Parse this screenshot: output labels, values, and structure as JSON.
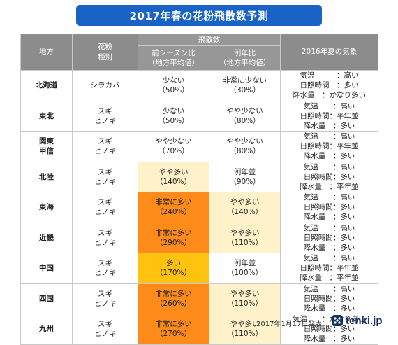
{
  "title": "2017年春の花粉飛散数予測",
  "headers": {
    "region": "地方",
    "pollen_type": "花粉\n種別",
    "dispersal": "飛散数",
    "prev_season": "前シーズン比\n（地方平均値）",
    "normal_year": "例年比\n（地方平均値）",
    "summer_weather": "2016年夏の気象"
  },
  "rows": [
    {
      "region": "北海道",
      "pollen": "シラカバ",
      "prev": [
        "少ない",
        "（50%）"
      ],
      "prev_level": "normal",
      "norm": [
        "非常に少ない",
        "（30%）"
      ],
      "norm_level": "normal",
      "weather": [
        "気温　　　：高い",
        "日照時間　：多い",
        "降水量　：かなり多い"
      ]
    },
    {
      "region": "東北",
      "pollen": "スギ\nヒノキ",
      "prev": [
        "少ない",
        "（50%）"
      ],
      "prev_level": "normal",
      "norm": [
        "やや少ない",
        "（80%）"
      ],
      "norm_level": "normal",
      "weather": [
        "気温　　：高い",
        "日照時間：平年並",
        "降水量　：多い"
      ]
    },
    {
      "region": "関東\n甲信",
      "pollen": "スギ\nヒノキ",
      "prev": [
        "やや少ない",
        "（70%）"
      ],
      "prev_level": "normal",
      "norm": [
        "やや少ない",
        "（80%）"
      ],
      "norm_level": "normal",
      "weather": [
        "気温　　：高い",
        "日照時間：平年並",
        "降水量　：多い"
      ]
    },
    {
      "region": "北陸",
      "pollen": "スギ\nヒノキ",
      "prev": [
        "やや多い",
        "（140%）"
      ],
      "prev_level": "more",
      "norm": [
        "例年並",
        "（90%）"
      ],
      "norm_level": "normal",
      "weather": [
        "気温　　：高い",
        "日照時間：多い",
        "降水量　：平年並"
      ]
    },
    {
      "region": "東海",
      "pollen": "スギ\nヒノキ",
      "prev": [
        "非常に多い",
        "（240%）"
      ],
      "prev_level": "very",
      "norm": [
        "やや多い",
        "（140%）"
      ],
      "norm_level": "more",
      "weather": [
        "気温　　：高い",
        "日照時間：多い",
        "降水量　：多い"
      ]
    },
    {
      "region": "近畿",
      "pollen": "スギ\nヒノキ",
      "prev": [
        "非常に多い",
        "（290%）"
      ],
      "prev_level": "very",
      "norm": [
        "やや多い",
        "（110%）"
      ],
      "norm_level": "more",
      "weather": [
        "気温　　：高い",
        "日照時間：多い",
        "降水量　：多い"
      ]
    },
    {
      "region": "中国",
      "pollen": "スギ\nヒノキ",
      "prev": [
        "多い",
        "（170%）"
      ],
      "prev_level": "much",
      "norm": [
        "例年並",
        "（100%）"
      ],
      "norm_level": "normal",
      "weather": [
        "気温　　：高い",
        "日照時間：平年並",
        "降水量　：平年並"
      ]
    },
    {
      "region": "四国",
      "pollen": "スギ\nヒノキ",
      "prev": [
        "非常に多い",
        "（260%）"
      ],
      "prev_level": "very",
      "norm": [
        "やや多い",
        "（110%）"
      ],
      "norm_level": "more",
      "weather": [
        "気温　　：高い",
        "日照時間：多い",
        "降水量　：多い"
      ]
    },
    {
      "region": "九州",
      "pollen": "スギ\nヒノキ",
      "prev": [
        "非常に多い",
        "（270%）"
      ],
      "prev_level": "very",
      "norm": [
        "やや多い",
        "（110%）"
      ],
      "norm_level": "more",
      "weather": [
        "気温　　：かなり高い",
        "日照時間：多い",
        "降水量　：多い"
      ]
    }
  ],
  "footer": {
    "date": "2017年1月17日発表",
    "logo": "tenki.jp"
  },
  "colors": {
    "title_bg": "#1a63c6",
    "header_bg": "#8c8c8c",
    "level_more": "#fff1c9",
    "level_much": "#ffc20e",
    "level_very": "#ff8c1a"
  }
}
